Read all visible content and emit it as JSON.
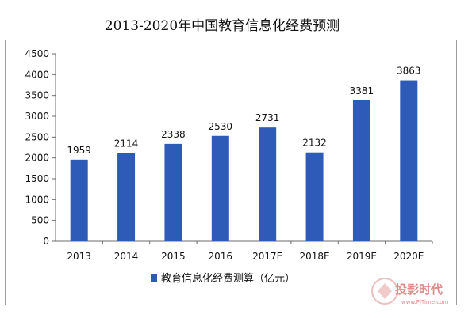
{
  "chart_data": {
    "type": "bar",
    "title": "2013-2020年中国教育信息化经费预测",
    "categories": [
      "2013",
      "2014",
      "2015",
      "2016",
      "2017E",
      "2018E",
      "2019E",
      "2020E"
    ],
    "series": [
      {
        "name": "教育信息化经费测算（亿元）",
        "values": [
          1959,
          2114,
          2338,
          2530,
          2731,
          2132,
          3381,
          3863
        ]
      }
    ],
    "y_ticks": [
      "0",
      "500",
      "1000",
      "1500",
      "2000",
      "2500",
      "3000",
      "3500",
      "4000",
      "4500"
    ],
    "ylim": [
      0,
      4500
    ],
    "grid": false,
    "legend_position": "bottom",
    "bar_color": "#2e5bb8"
  },
  "watermark": {
    "text_cn": "投影时代",
    "text_en": "www.PjTime.com",
    "color": "#e08a8a"
  }
}
